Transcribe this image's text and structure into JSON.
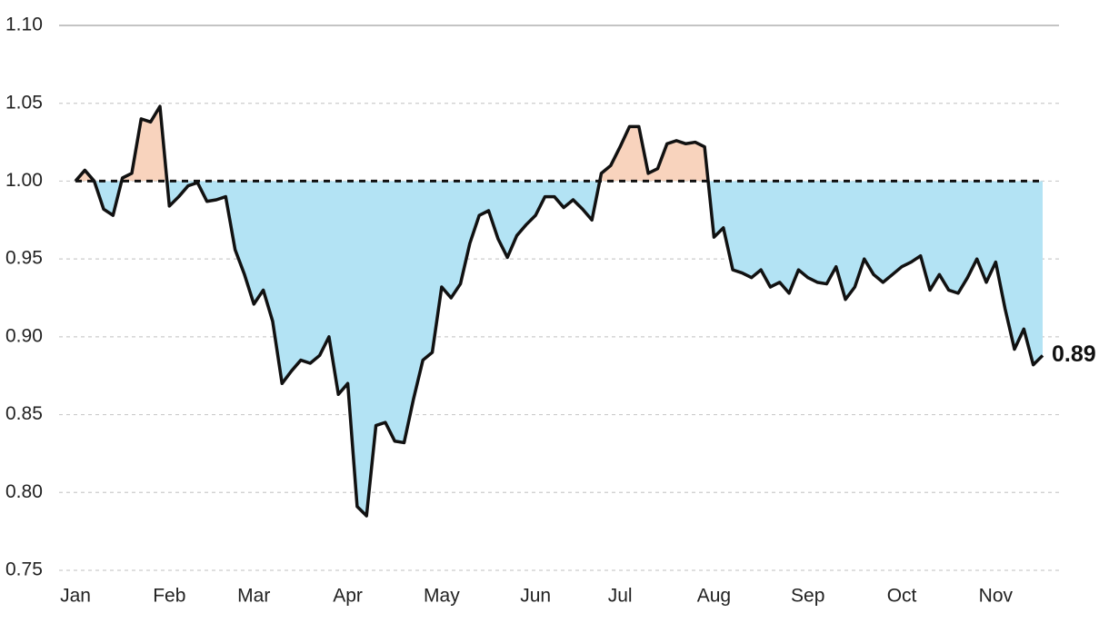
{
  "chart_data": {
    "type": "line",
    "categories": [
      "Jan",
      null,
      null,
      null,
      null,
      null,
      null,
      null,
      null,
      null,
      "Feb",
      null,
      null,
      null,
      null,
      null,
      null,
      null,
      null,
      "Mar",
      null,
      null,
      null,
      null,
      null,
      null,
      null,
      null,
      null,
      "Apr",
      null,
      null,
      null,
      null,
      null,
      null,
      null,
      null,
      null,
      "May",
      null,
      null,
      null,
      null,
      null,
      null,
      null,
      null,
      null,
      "Jun",
      null,
      null,
      null,
      null,
      null,
      null,
      null,
      null,
      "Jul",
      null,
      null,
      null,
      null,
      null,
      null,
      null,
      null,
      null,
      "Aug",
      null,
      null,
      null,
      null,
      null,
      null,
      null,
      null,
      null,
      "Sep",
      null,
      null,
      null,
      null,
      null,
      null,
      null,
      null,
      null,
      "Oct",
      null,
      null,
      null,
      null,
      null,
      null,
      null,
      null,
      null,
      "Nov",
      null,
      null,
      null,
      null,
      null
    ],
    "series": [
      {
        "color": "#111111",
        "values": [
          1.0,
          1.007,
          1.0,
          0.982,
          0.978,
          1.002,
          1.005,
          1.04,
          1.038,
          1.048,
          0.984,
          0.99,
          0.997,
          0.999,
          0.987,
          0.988,
          0.99,
          0.956,
          0.94,
          0.921,
          0.93,
          0.91,
          0.87,
          0.878,
          0.885,
          0.883,
          0.888,
          0.9,
          0.863,
          0.87,
          0.791,
          0.785,
          0.843,
          0.845,
          0.833,
          0.832,
          0.86,
          0.885,
          0.89,
          0.932,
          0.925,
          0.934,
          0.96,
          0.978,
          0.981,
          0.963,
          0.951,
          0.965,
          0.972,
          0.978,
          0.99,
          0.99,
          0.983,
          0.988,
          0.982,
          0.975,
          1.005,
          1.01,
          1.022,
          1.035,
          1.035,
          1.005,
          1.008,
          1.024,
          1.026,
          1.024,
          1.025,
          1.022,
          0.964,
          0.97,
          0.943,
          0.941,
          0.938,
          0.943,
          0.932,
          0.935,
          0.928,
          0.943,
          0.938,
          0.935,
          0.934,
          0.945,
          0.924,
          0.932,
          0.95,
          0.94,
          0.935,
          0.94,
          0.945,
          0.948,
          0.952,
          0.93,
          0.94,
          0.93,
          0.928,
          0.938,
          0.95,
          0.935,
          0.948,
          0.918,
          0.892,
          0.905,
          0.882,
          0.888
        ],
        "value_labels": [
          null,
          null,
          null,
          null,
          null,
          null,
          null,
          null,
          null,
          null,
          null,
          null,
          null,
          null,
          null,
          null,
          null,
          null,
          null,
          null,
          null,
          null,
          null,
          null,
          null,
          null,
          null,
          null,
          null,
          null,
          null,
          null,
          null,
          null,
          null,
          null,
          null,
          null,
          null,
          null,
          null,
          null,
          null,
          null,
          null,
          null,
          null,
          null,
          null,
          null,
          null,
          null,
          null,
          null,
          null,
          null,
          null,
          null,
          null,
          null,
          null,
          null,
          null,
          null,
          null,
          null,
          null,
          null,
          null,
          null,
          null,
          null,
          null,
          null,
          null,
          null,
          null,
          null,
          null,
          null,
          null,
          null,
          null,
          null,
          null,
          null,
          null,
          null,
          null,
          null,
          null,
          null,
          null,
          null,
          null,
          null,
          null,
          null,
          null,
          null,
          null,
          null,
          null,
          "0.89"
        ]
      }
    ],
    "reference": 1,
    "above_color": "#f8d3bd",
    "below_color": "#b3e3f4",
    "ylim": [
      0.75,
      1.1
    ],
    "yticks": [
      0.75,
      {
        "value": 0.8,
        "label": "0.80"
      },
      0.85,
      {
        "value": 0.9,
        "label": "0.90"
      },
      0.95,
      {
        "value": 1.0,
        "label": "1.00"
      },
      1.05,
      {
        "value": 1.1,
        "label": "1.10"
      }
    ],
    "grid": true
  }
}
